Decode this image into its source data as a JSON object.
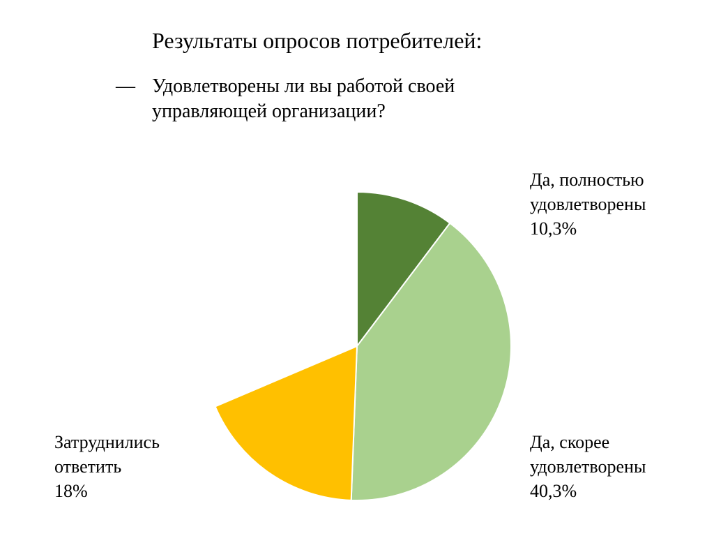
{
  "slide": {
    "title": "Результаты опросов потребителей:",
    "bullet_marker": "—",
    "question": "Удовлетворены ли вы работой своей управляющей организации?"
  },
  "chart_data": {
    "type": "pie",
    "title": "",
    "start_angle_deg": 0,
    "slices": [
      {
        "line1": "Да, полностью",
        "line2": "удовлетворены",
        "value_label": "10,3%",
        "value": 10.3,
        "color": "#548235"
      },
      {
        "line1": "Да, скорее",
        "line2": "удовлетворены",
        "value_label": "40,3%",
        "value": 40.3,
        "color": "#a9d18e"
      },
      {
        "line1": "Затруднились",
        "line2": "ответить",
        "value_label": "18%",
        "value": 18,
        "color": "#ffc000"
      }
    ]
  }
}
